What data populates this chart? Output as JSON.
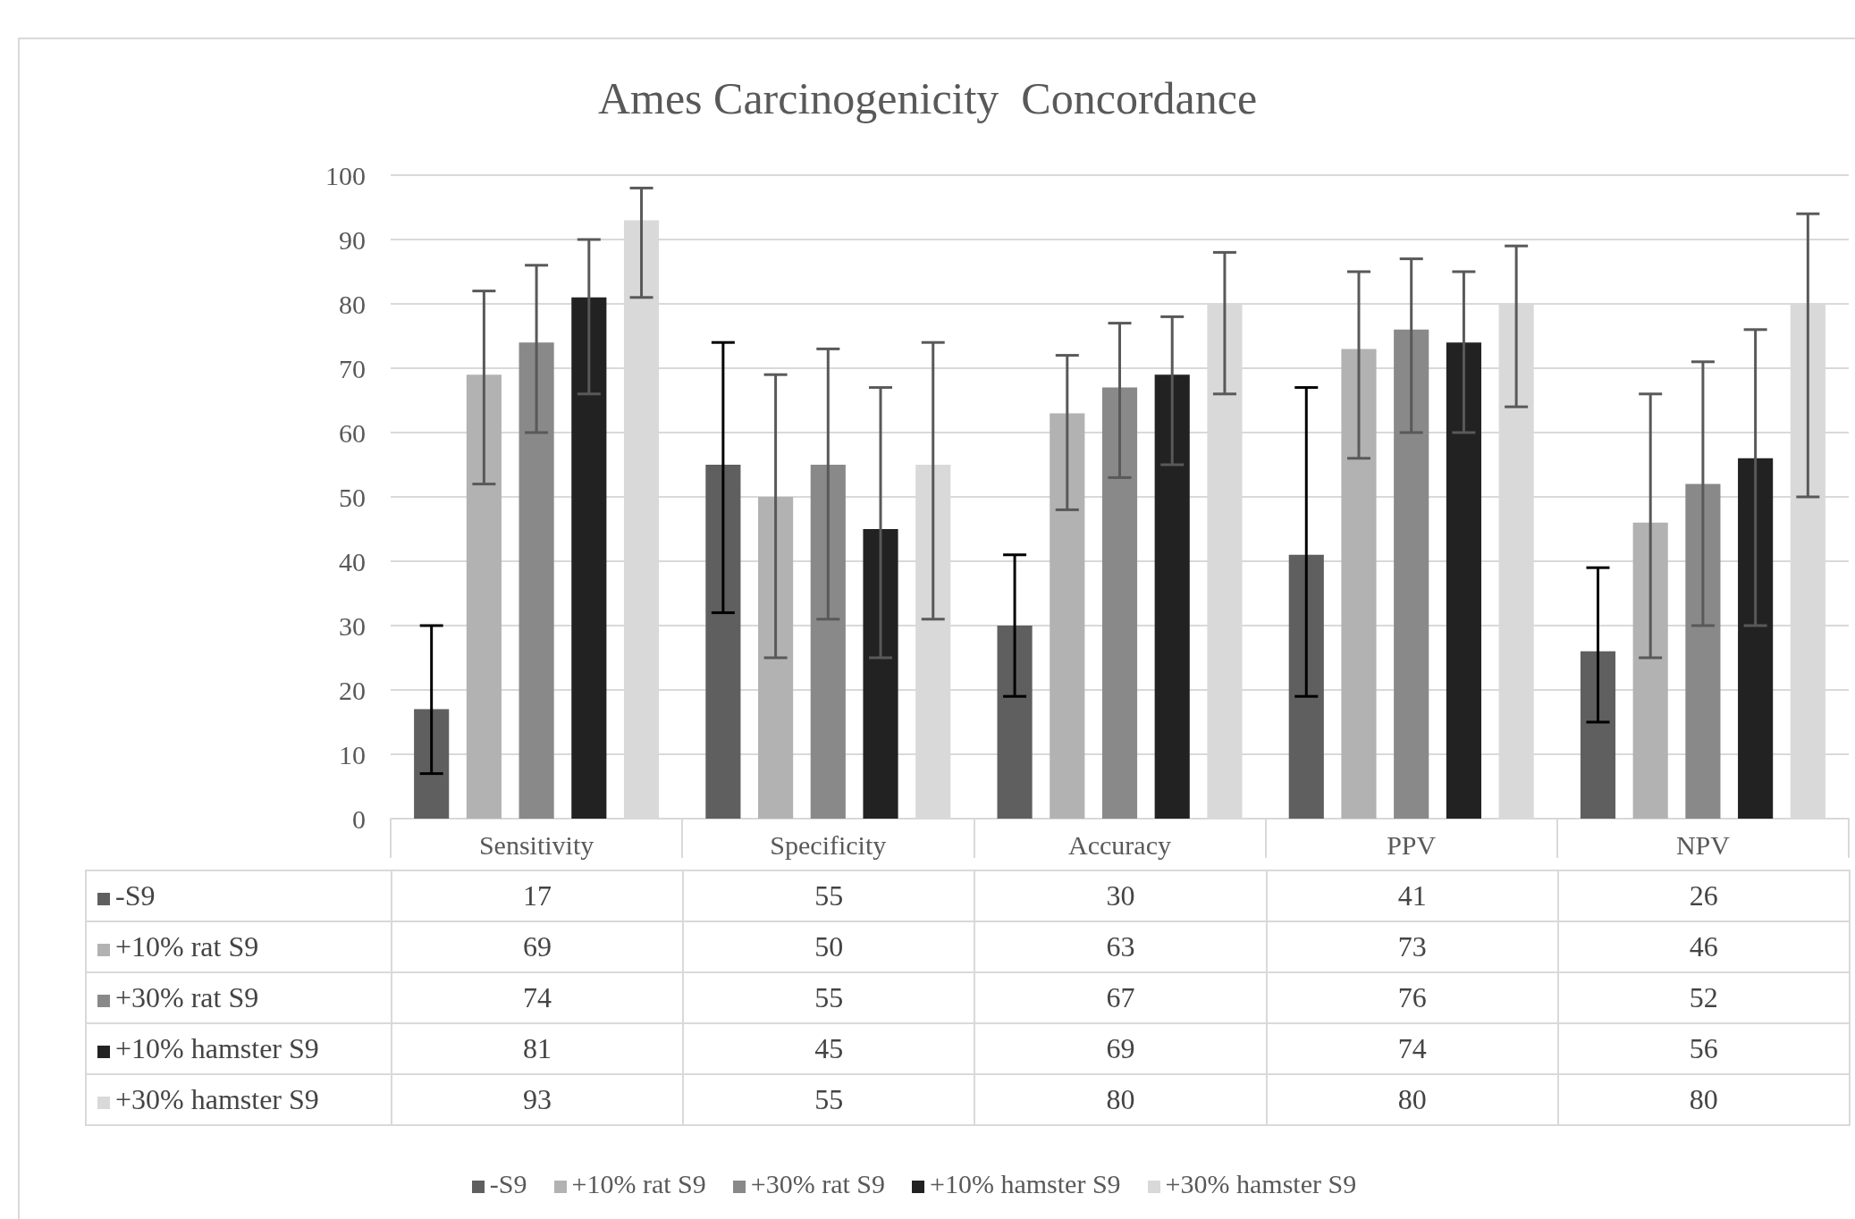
{
  "chart_data": {
    "type": "bar",
    "title": "Ames Carcinogenicity  Concordance",
    "categories": [
      "Sensitivity",
      "Specificity",
      "Accuracy",
      "PPV",
      "NPV"
    ],
    "series": [
      {
        "name": "-S9",
        "color": "#5f5f5f",
        "values": [
          17,
          55,
          30,
          41,
          26
        ],
        "errors": [
          [
            7,
            30
          ],
          [
            32,
            74
          ],
          [
            19,
            41
          ],
          [
            19,
            67
          ],
          [
            15,
            39
          ]
        ]
      },
      {
        "name": "+10% rat S9",
        "color": "#b2b2b2",
        "values": [
          69,
          50,
          63,
          73,
          46
        ],
        "errors": [
          [
            52,
            82
          ],
          [
            25,
            69
          ],
          [
            48,
            72
          ],
          [
            56,
            85
          ],
          [
            25,
            66
          ]
        ]
      },
      {
        "name": "+30% rat S9",
        "color": "#898989",
        "values": [
          74,
          55,
          67,
          76,
          52
        ],
        "errors": [
          [
            60,
            86
          ],
          [
            31,
            73
          ],
          [
            53,
            77
          ],
          [
            60,
            87
          ],
          [
            30,
            71
          ]
        ]
      },
      {
        "name": "+10% hamster S9",
        "color": "#222222",
        "values": [
          81,
          45,
          69,
          74,
          56
        ],
        "errors": [
          [
            66,
            90
          ],
          [
            25,
            67
          ],
          [
            55,
            78
          ],
          [
            60,
            85
          ],
          [
            30,
            76
          ]
        ]
      },
      {
        "name": "+30% hamster S9",
        "color": "#d9d9d9",
        "values": [
          93,
          55,
          80,
          80,
          80
        ],
        "errors": [
          [
            81,
            98
          ],
          [
            31,
            74
          ],
          [
            66,
            88
          ],
          [
            64,
            89
          ],
          [
            50,
            94
          ]
        ]
      }
    ],
    "ylim": [
      0,
      100
    ],
    "yticks": [
      0,
      10,
      20,
      30,
      40,
      50,
      60,
      70,
      80,
      90,
      100
    ],
    "grid": "y",
    "legend": "bottom",
    "data_labels": true
  }
}
